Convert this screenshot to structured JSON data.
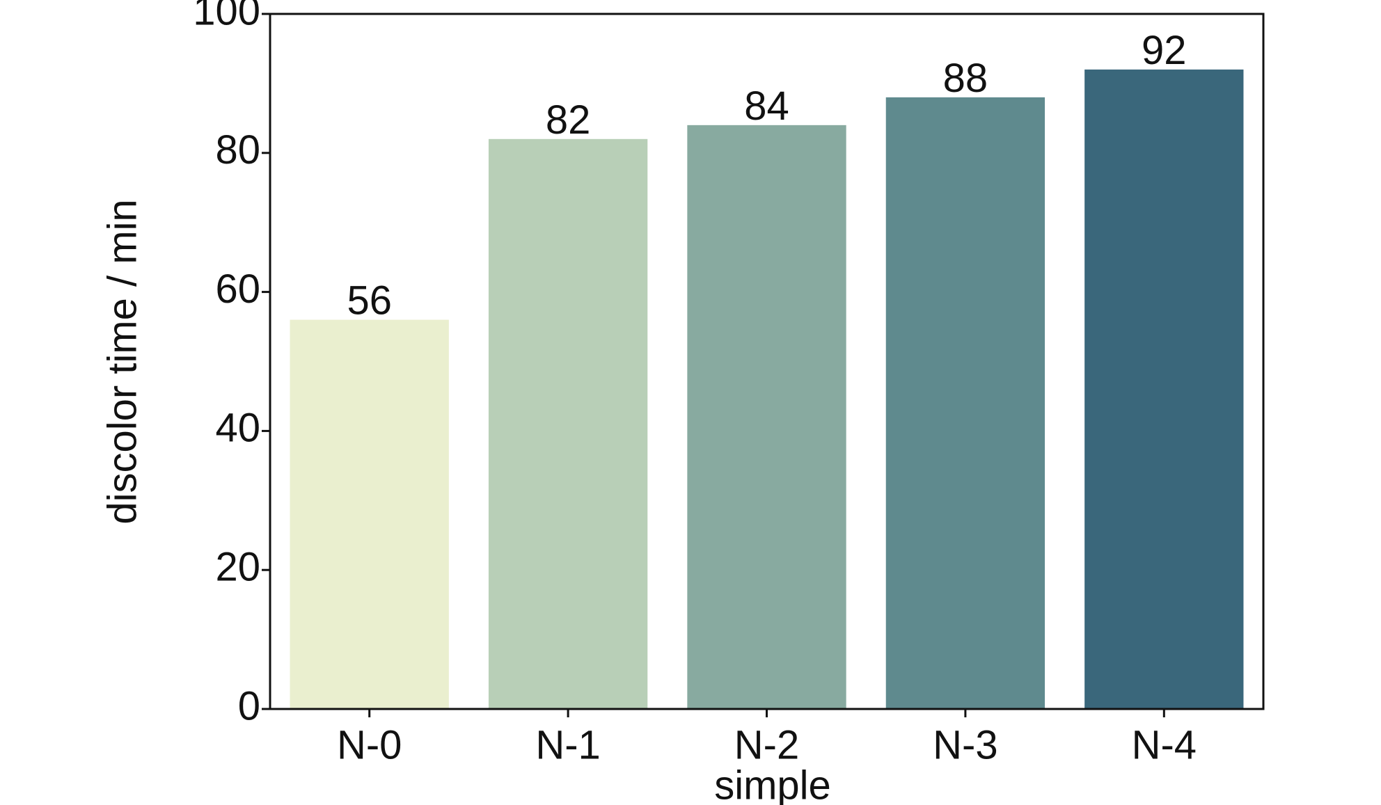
{
  "chart_data": {
    "type": "bar",
    "x_label": "simple",
    "y_label": "discolor time / min",
    "categories": [
      "N-0",
      "N-1",
      "N-2",
      "N-3",
      "N-4"
    ],
    "values": [
      56,
      82,
      84,
      88,
      92
    ],
    "colors": [
      "#eaefcf",
      "#b8cfb7",
      "#88aaa0",
      "#5f8a8e",
      "#3a677b"
    ],
    "ylim": [
      0,
      100
    ],
    "yticks": [
      0,
      20,
      40,
      60,
      80,
      100
    ],
    "grid": false
  }
}
